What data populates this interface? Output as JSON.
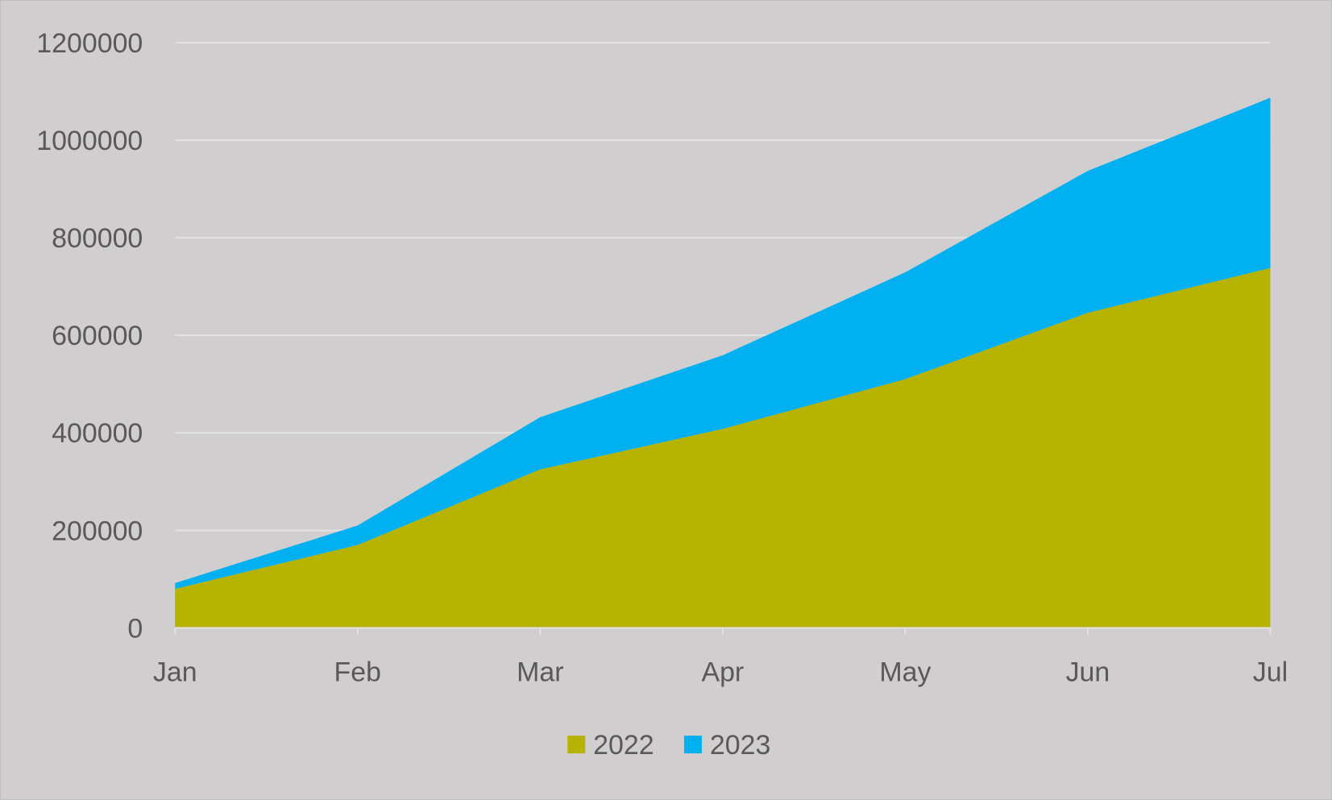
{
  "chart_data": {
    "type": "area",
    "stacked": true,
    "title": "",
    "xlabel": "",
    "ylabel": "",
    "categories": [
      "Jan",
      "Feb",
      "Mar",
      "Apr",
      "May",
      "Jun",
      "Jul"
    ],
    "series": [
      {
        "name": "2022",
        "color": "#B5B300",
        "values": [
          80000,
          170000,
          325000,
          408000,
          510000,
          646000,
          738000
        ]
      },
      {
        "name": "2023",
        "color": "#00B0F0",
        "values": [
          12000,
          40000,
          107000,
          151000,
          219000,
          291000,
          349000
        ]
      }
    ],
    "ylim": [
      0,
      1200000
    ],
    "yticks": [
      "0",
      "200000",
      "400000",
      "600000",
      "800000",
      "1000000",
      "1200000"
    ],
    "grid": true,
    "legend": "bottom",
    "background": "#D0CECE"
  }
}
